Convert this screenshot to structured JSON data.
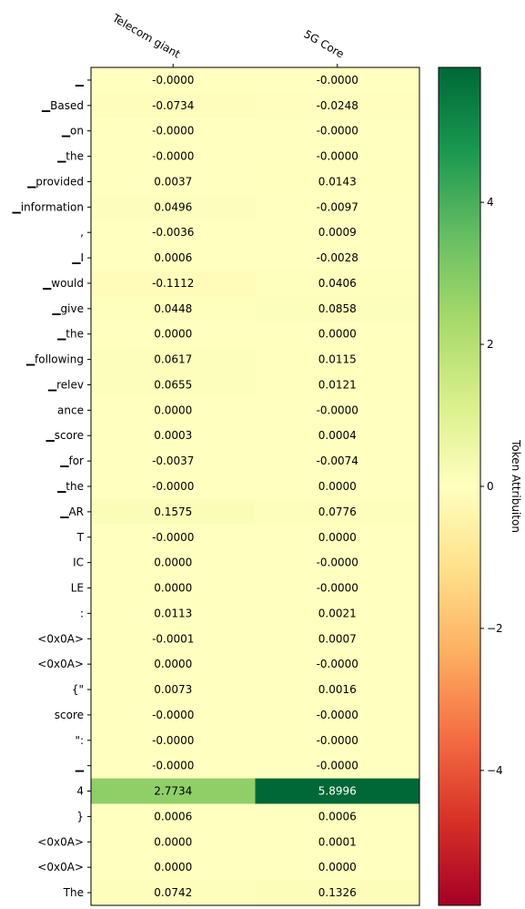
{
  "chart_data": {
    "type": "heatmap",
    "columns": [
      "Telecom giant",
      "5G Core"
    ],
    "rows": [
      "▁",
      "▁Based",
      "▁on",
      "▁the",
      "▁provided",
      "▁information",
      ",",
      "▁I",
      "▁would",
      "▁give",
      "▁the",
      "▁following",
      "▁relev",
      "ance",
      "▁score",
      "▁for",
      "▁the",
      "▁AR",
      "T",
      "IC",
      "LE",
      ":",
      "<0x0A>",
      "<0x0A>",
      "{\"",
      "score",
      "\":",
      "▁",
      "4",
      "}",
      "<0x0A>",
      "<0x0A>",
      "The"
    ],
    "values": [
      [
        -0.0,
        -0.0
      ],
      [
        -0.0734,
        -0.0248
      ],
      [
        -0.0,
        -0.0
      ],
      [
        -0.0,
        -0.0
      ],
      [
        0.0037,
        0.0143
      ],
      [
        0.0496,
        -0.0097
      ],
      [
        -0.0036,
        0.0009
      ],
      [
        0.0006,
        -0.0028
      ],
      [
        -0.1112,
        0.0406
      ],
      [
        0.0448,
        0.0858
      ],
      [
        0.0,
        0.0
      ],
      [
        0.0617,
        0.0115
      ],
      [
        0.0655,
        0.0121
      ],
      [
        0.0,
        -0.0
      ],
      [
        0.0003,
        0.0004
      ],
      [
        -0.0037,
        -0.0074
      ],
      [
        -0.0,
        0.0
      ],
      [
        0.1575,
        0.0776
      ],
      [
        -0.0,
        0.0
      ],
      [
        0.0,
        -0.0
      ],
      [
        0.0,
        -0.0
      ],
      [
        0.0113,
        0.0021
      ],
      [
        -0.0001,
        0.0007
      ],
      [
        0.0,
        -0.0
      ],
      [
        0.0073,
        0.0016
      ],
      [
        -0.0,
        -0.0
      ],
      [
        -0.0,
        -0.0
      ],
      [
        -0.0,
        -0.0
      ],
      [
        2.7734,
        5.8996
      ],
      [
        0.0006,
        0.0006
      ],
      [
        0.0,
        0.0001
      ],
      [
        0.0,
        0.0
      ],
      [
        0.0742,
        0.1326
      ]
    ],
    "labels": [
      [
        "-0.0000",
        "-0.0000"
      ],
      [
        "-0.0734",
        "-0.0248"
      ],
      [
        "-0.0000",
        "-0.0000"
      ],
      [
        "-0.0000",
        "-0.0000"
      ],
      [
        "0.0037",
        "0.0143"
      ],
      [
        "0.0496",
        "-0.0097"
      ],
      [
        "-0.0036",
        "0.0009"
      ],
      [
        "0.0006",
        "-0.0028"
      ],
      [
        "-0.1112",
        "0.0406"
      ],
      [
        "0.0448",
        "0.0858"
      ],
      [
        "0.0000",
        "0.0000"
      ],
      [
        "0.0617",
        "0.0115"
      ],
      [
        "0.0655",
        "0.0121"
      ],
      [
        "0.0000",
        "-0.0000"
      ],
      [
        "0.0003",
        "0.0004"
      ],
      [
        "-0.0037",
        "-0.0074"
      ],
      [
        "-0.0000",
        "0.0000"
      ],
      [
        "0.1575",
        "0.0776"
      ],
      [
        "-0.0000",
        "0.0000"
      ],
      [
        "0.0000",
        "-0.0000"
      ],
      [
        "0.0000",
        "-0.0000"
      ],
      [
        "0.0113",
        "0.0021"
      ],
      [
        "-0.0001",
        "0.0007"
      ],
      [
        "0.0000",
        "-0.0000"
      ],
      [
        "0.0073",
        "0.0016"
      ],
      [
        "-0.0000",
        "-0.0000"
      ],
      [
        "-0.0000",
        "-0.0000"
      ],
      [
        "-0.0000",
        "-0.0000"
      ],
      [
        "2.7734",
        "5.8996"
      ],
      [
        "0.0006",
        "0.0006"
      ],
      [
        "0.0000",
        "0.0001"
      ],
      [
        "0.0000",
        "0.0000"
      ],
      [
        "0.0742",
        "0.1326"
      ]
    ],
    "colormap": "RdYlGn",
    "colormap_stops": [
      "#a50026",
      "#d73027",
      "#f46d43",
      "#fdae61",
      "#fee08b",
      "#ffffbf",
      "#d9ef8b",
      "#a6d96a",
      "#66bd63",
      "#1a9850",
      "#006837"
    ],
    "vmin": -5.8996,
    "vmax": 5.8996,
    "colorbar_label": "Token Attribuiton",
    "colorbar_ticks": [
      4,
      2,
      0,
      -2,
      -4
    ],
    "colorbar_tick_labels": [
      "4",
      "2",
      "0",
      "−2",
      "−4"
    ]
  }
}
